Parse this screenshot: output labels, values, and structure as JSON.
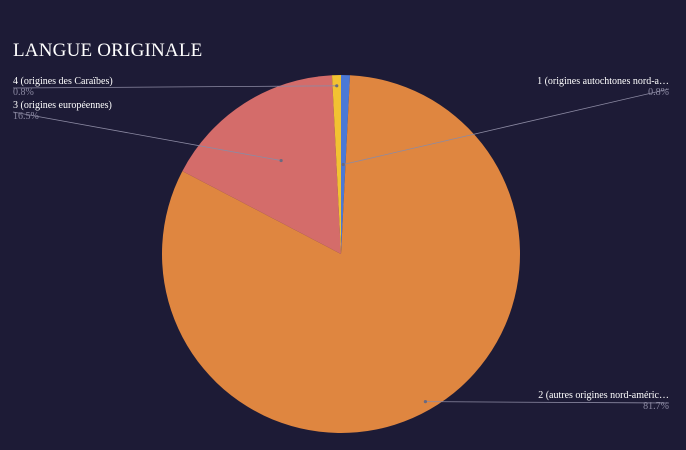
{
  "chart_data": {
    "type": "pie",
    "title": "LANGUE ORIGINALE",
    "slices": [
      {
        "label": "1 (origines autochtones nord-a…",
        "value": 0.8,
        "display": "0.8%",
        "color": "#4b79d6"
      },
      {
        "label": "2 (autres origines nord-améric…",
        "value": 81.7,
        "display": "81.7%",
        "color": "#df8640"
      },
      {
        "label": "3 (origines européennes)",
        "value": 16.5,
        "display": "16.5%",
        "color": "#d46c6a"
      },
      {
        "label": "4 (origines des Caraïbes)",
        "value": 0.8,
        "display": "0.8%",
        "color": "#f2c232"
      }
    ],
    "legend": "callout-labels"
  }
}
